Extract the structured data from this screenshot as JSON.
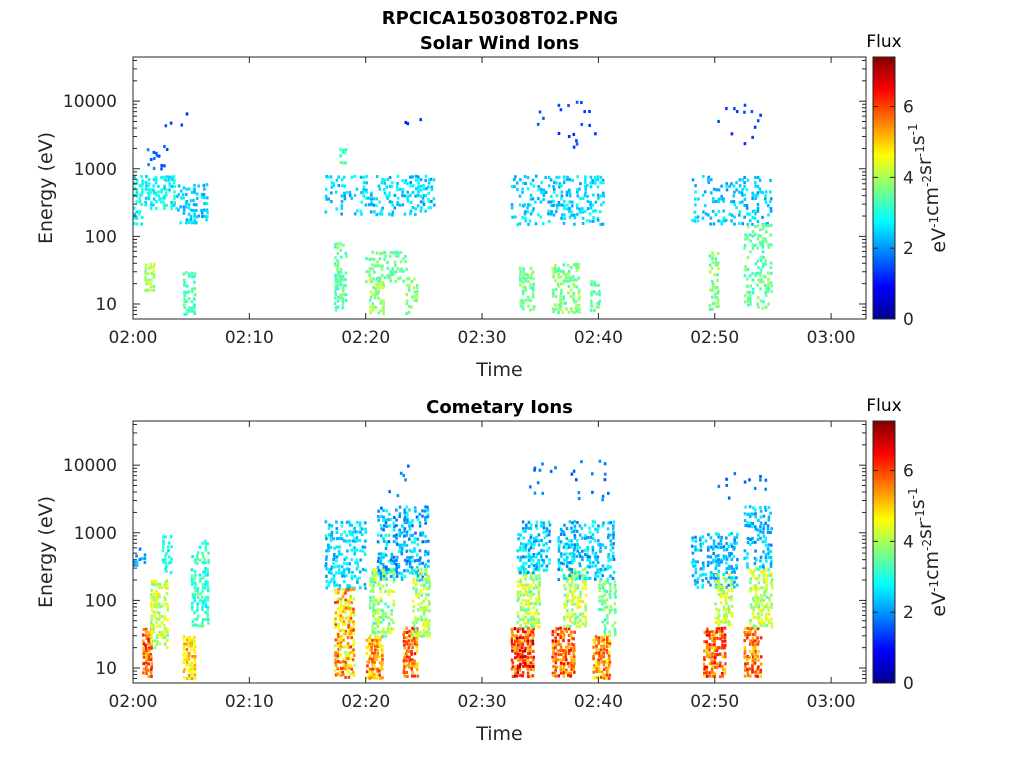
{
  "figure_title": "RPCICA150308T02.PNG",
  "chart_data": [
    {
      "type": "heatmap",
      "title": "Solar Wind Ions",
      "xlabel": "Time",
      "ylabel": "Energy (eV)",
      "yscale": "log",
      "xlim": [
        "02:00",
        "03:03"
      ],
      "ylim": [
        6,
        45000
      ],
      "x_ticks": [
        "02:00",
        "02:10",
        "02:20",
        "02:30",
        "02:40",
        "02:50",
        "03:00"
      ],
      "y_ticks": [
        "10",
        "100",
        "1000",
        "10000"
      ],
      "colorbar": {
        "title": "Flux",
        "label": "eV-1cm-2sr-1s-1",
        "min": 0,
        "max": 7.4,
        "ticks": [
          "0",
          "2",
          "4",
          "6"
        ],
        "colormap": "jet"
      },
      "clusters": [
        {
          "t": [
            0.0,
            1.0
          ],
          "e": [
            150,
            800
          ],
          "f": [
            2.4,
            3.2
          ],
          "density": 0.55
        },
        {
          "t": [
            1.0,
            3.8
          ],
          "e": [
            250,
            800
          ],
          "f": [
            2.3,
            3.2
          ],
          "density": 0.5
        },
        {
          "t": [
            1.0,
            3.0
          ],
          "e": [
            1000,
            2500
          ],
          "f": [
            1.4,
            2.0
          ],
          "density": 0.25
        },
        {
          "t": [
            3.8,
            6.5
          ],
          "e": [
            150,
            600
          ],
          "f": [
            2.0,
            2.8
          ],
          "density": 0.4
        },
        {
          "t": [
            1.0,
            1.8
          ],
          "e": [
            15,
            40
          ],
          "f": [
            3.5,
            4.6
          ],
          "density": 0.7
        },
        {
          "t": [
            4.3,
            5.5
          ],
          "e": [
            7,
            30
          ],
          "f": [
            3.0,
            3.6
          ],
          "density": 0.6
        },
        {
          "t": [
            2.5,
            4.8
          ],
          "e": [
            3500,
            7000
          ],
          "f": [
            1.2,
            1.6
          ],
          "density": 0.05
        },
        {
          "t": [
            16.5,
            19.5
          ],
          "e": [
            200,
            800
          ],
          "f": [
            2.0,
            2.8
          ],
          "density": 0.3
        },
        {
          "t": [
            17.3,
            18.4
          ],
          "e": [
            7,
            80
          ],
          "f": [
            3.0,
            3.8
          ],
          "density": 0.5
        },
        {
          "t": [
            19.5,
            26.0
          ],
          "e": [
            200,
            800
          ],
          "f": [
            2.0,
            2.9
          ],
          "density": 0.35
        },
        {
          "t": [
            20.0,
            23.5
          ],
          "e": [
            20,
            60
          ],
          "f": [
            3.2,
            3.8
          ],
          "density": 0.45
        },
        {
          "t": [
            20.3,
            21.6
          ],
          "e": [
            7,
            25
          ],
          "f": [
            3.4,
            4.4
          ],
          "density": 0.45
        },
        {
          "t": [
            23.4,
            24.6
          ],
          "e": [
            7,
            25
          ],
          "f": [
            3.4,
            4.2
          ],
          "density": 0.5
        },
        {
          "t": [
            21.5,
            25.0
          ],
          "e": [
            3500,
            8500
          ],
          "f": [
            1.2,
            1.6
          ],
          "density": 0.05
        },
        {
          "t": [
            17.5,
            18.5
          ],
          "e": [
            1200,
            2500
          ],
          "f": [
            2.8,
            3.8
          ],
          "density": 0.3
        },
        {
          "t": [
            32.5,
            40.5
          ],
          "e": [
            150,
            800
          ],
          "f": [
            2.0,
            2.9
          ],
          "density": 0.35
        },
        {
          "t": [
            33.2,
            34.5
          ],
          "e": [
            7,
            35
          ],
          "f": [
            3.2,
            4.0
          ],
          "density": 0.55
        },
        {
          "t": [
            36.0,
            38.5
          ],
          "e": [
            7,
            40
          ],
          "f": [
            3.2,
            4.2
          ],
          "density": 0.55
        },
        {
          "t": [
            39.3,
            40.3
          ],
          "e": [
            7,
            25
          ],
          "f": [
            3.2,
            3.8
          ],
          "density": 0.5
        },
        {
          "t": [
            34.0,
            40.0
          ],
          "e": [
            2000,
            10000
          ],
          "f": [
            1.2,
            1.6
          ],
          "density": 0.05
        },
        {
          "t": [
            48.0,
            55.0
          ],
          "e": [
            150,
            800
          ],
          "f": [
            2.0,
            2.8
          ],
          "density": 0.25
        },
        {
          "t": [
            49.5,
            50.5
          ],
          "e": [
            8,
            60
          ],
          "f": [
            3.2,
            4.2
          ],
          "density": 0.5
        },
        {
          "t": [
            52.5,
            55.0
          ],
          "e": [
            8,
            150
          ],
          "f": [
            3.0,
            3.9
          ],
          "density": 0.4
        },
        {
          "t": [
            50.0,
            54.5
          ],
          "e": [
            2000,
            9000
          ],
          "f": [
            1.2,
            1.6
          ],
          "density": 0.05
        }
      ]
    },
    {
      "type": "heatmap",
      "title": "Cometary Ions",
      "xlabel": "Time",
      "ylabel": "Energy (eV)",
      "yscale": "log",
      "xlim": [
        "02:00",
        "03:03"
      ],
      "ylim": [
        6,
        45000
      ],
      "x_ticks": [
        "02:00",
        "02:10",
        "02:20",
        "02:30",
        "02:40",
        "02:50",
        "03:00"
      ],
      "y_ticks": [
        "10",
        "100",
        "1000",
        "10000"
      ],
      "colorbar": {
        "title": "Flux",
        "label": "eV-1cm-2sr-1s-1",
        "min": 0,
        "max": 7.4,
        "ticks": [
          "0",
          "2",
          "4",
          "6"
        ],
        "colormap": "jet"
      },
      "clusters": [
        {
          "t": [
            0.0,
            1.2
          ],
          "e": [
            300,
            600
          ],
          "f": [
            1.6,
            2.4
          ],
          "density": 0.5
        },
        {
          "t": [
            0.8,
            1.8
          ],
          "e": [
            7,
            40
          ],
          "f": [
            5.0,
            6.6
          ],
          "density": 0.8
        },
        {
          "t": [
            1.5,
            3.0
          ],
          "e": [
            20,
            200
          ],
          "f": [
            3.5,
            4.8
          ],
          "density": 0.6
        },
        {
          "t": [
            2.5,
            3.5
          ],
          "e": [
            250,
            900
          ],
          "f": [
            2.4,
            3.2
          ],
          "density": 0.5
        },
        {
          "t": [
            4.3,
            5.5
          ],
          "e": [
            7,
            30
          ],
          "f": [
            4.2,
            5.6
          ],
          "density": 0.7
        },
        {
          "t": [
            5.0,
            6.5
          ],
          "e": [
            40,
            800
          ],
          "f": [
            2.6,
            3.6
          ],
          "density": 0.55
        },
        {
          "t": [
            16.5,
            20.0
          ],
          "e": [
            150,
            1500
          ],
          "f": [
            2.0,
            3.0
          ],
          "density": 0.45
        },
        {
          "t": [
            17.3,
            19.0
          ],
          "e": [
            7,
            150
          ],
          "f": [
            4.0,
            6.2
          ],
          "density": 0.7
        },
        {
          "t": [
            20.0,
            21.5
          ],
          "e": [
            7,
            30
          ],
          "f": [
            4.5,
            6.2
          ],
          "density": 0.7
        },
        {
          "t": [
            20.3,
            22.5
          ],
          "e": [
            30,
            300
          ],
          "f": [
            3.2,
            4.6
          ],
          "density": 0.6
        },
        {
          "t": [
            21.0,
            25.5
          ],
          "e": [
            200,
            2500
          ],
          "f": [
            1.6,
            3.0
          ],
          "density": 0.45
        },
        {
          "t": [
            23.2,
            24.5
          ],
          "e": [
            7,
            40
          ],
          "f": [
            4.8,
            6.4
          ],
          "density": 0.75
        },
        {
          "t": [
            24.0,
            25.5
          ],
          "e": [
            30,
            300
          ],
          "f": [
            3.4,
            4.6
          ],
          "density": 0.6
        },
        {
          "t": [
            22.0,
            24.0
          ],
          "e": [
            3000,
            10000
          ],
          "f": [
            1.4,
            2.0
          ],
          "density": 0.08
        },
        {
          "t": [
            32.5,
            34.5
          ],
          "e": [
            7,
            40
          ],
          "f": [
            5.0,
            7.0
          ],
          "density": 0.8
        },
        {
          "t": [
            33.0,
            35.0
          ],
          "e": [
            40,
            300
          ],
          "f": [
            3.2,
            4.8
          ],
          "density": 0.6
        },
        {
          "t": [
            33.0,
            36.0
          ],
          "e": [
            250,
            1500
          ],
          "f": [
            1.8,
            3.0
          ],
          "density": 0.45
        },
        {
          "t": [
            36.0,
            38.0
          ],
          "e": [
            7,
            40
          ],
          "f": [
            5.0,
            6.6
          ],
          "density": 0.75
        },
        {
          "t": [
            37.0,
            39.0
          ],
          "e": [
            40,
            300
          ],
          "f": [
            3.4,
            4.8
          ],
          "density": 0.6
        },
        {
          "t": [
            36.5,
            41.5
          ],
          "e": [
            200,
            1500
          ],
          "f": [
            1.8,
            3.0
          ],
          "density": 0.45
        },
        {
          "t": [
            39.5,
            41.0
          ],
          "e": [
            7,
            30
          ],
          "f": [
            4.6,
            6.2
          ],
          "density": 0.7
        },
        {
          "t": [
            40.0,
            41.5
          ],
          "e": [
            30,
            200
          ],
          "f": [
            3.0,
            4.2
          ],
          "density": 0.5
        },
        {
          "t": [
            34.0,
            41.0
          ],
          "e": [
            3000,
            12000
          ],
          "f": [
            1.4,
            2.0
          ],
          "density": 0.06
        },
        {
          "t": [
            48.0,
            52.0
          ],
          "e": [
            150,
            1000
          ],
          "f": [
            1.8,
            2.8
          ],
          "density": 0.4
        },
        {
          "t": [
            49.0,
            51.0
          ],
          "e": [
            7,
            40
          ],
          "f": [
            4.8,
            6.6
          ],
          "density": 0.75
        },
        {
          "t": [
            50.0,
            51.5
          ],
          "e": [
            40,
            250
          ],
          "f": [
            3.6,
            5.0
          ],
          "density": 0.55
        },
        {
          "t": [
            52.5,
            54.0
          ],
          "e": [
            7,
            40
          ],
          "f": [
            4.8,
            6.4
          ],
          "density": 0.7
        },
        {
          "t": [
            53.0,
            55.0
          ],
          "e": [
            40,
            300
          ],
          "f": [
            3.4,
            4.8
          ],
          "density": 0.6
        },
        {
          "t": [
            52.5,
            55.0
          ],
          "e": [
            300,
            2500
          ],
          "f": [
            1.8,
            2.8
          ],
          "density": 0.4
        },
        {
          "t": [
            50.0,
            54.5
          ],
          "e": [
            3000,
            8000
          ],
          "f": [
            1.4,
            2.0
          ],
          "density": 0.06
        }
      ]
    }
  ]
}
